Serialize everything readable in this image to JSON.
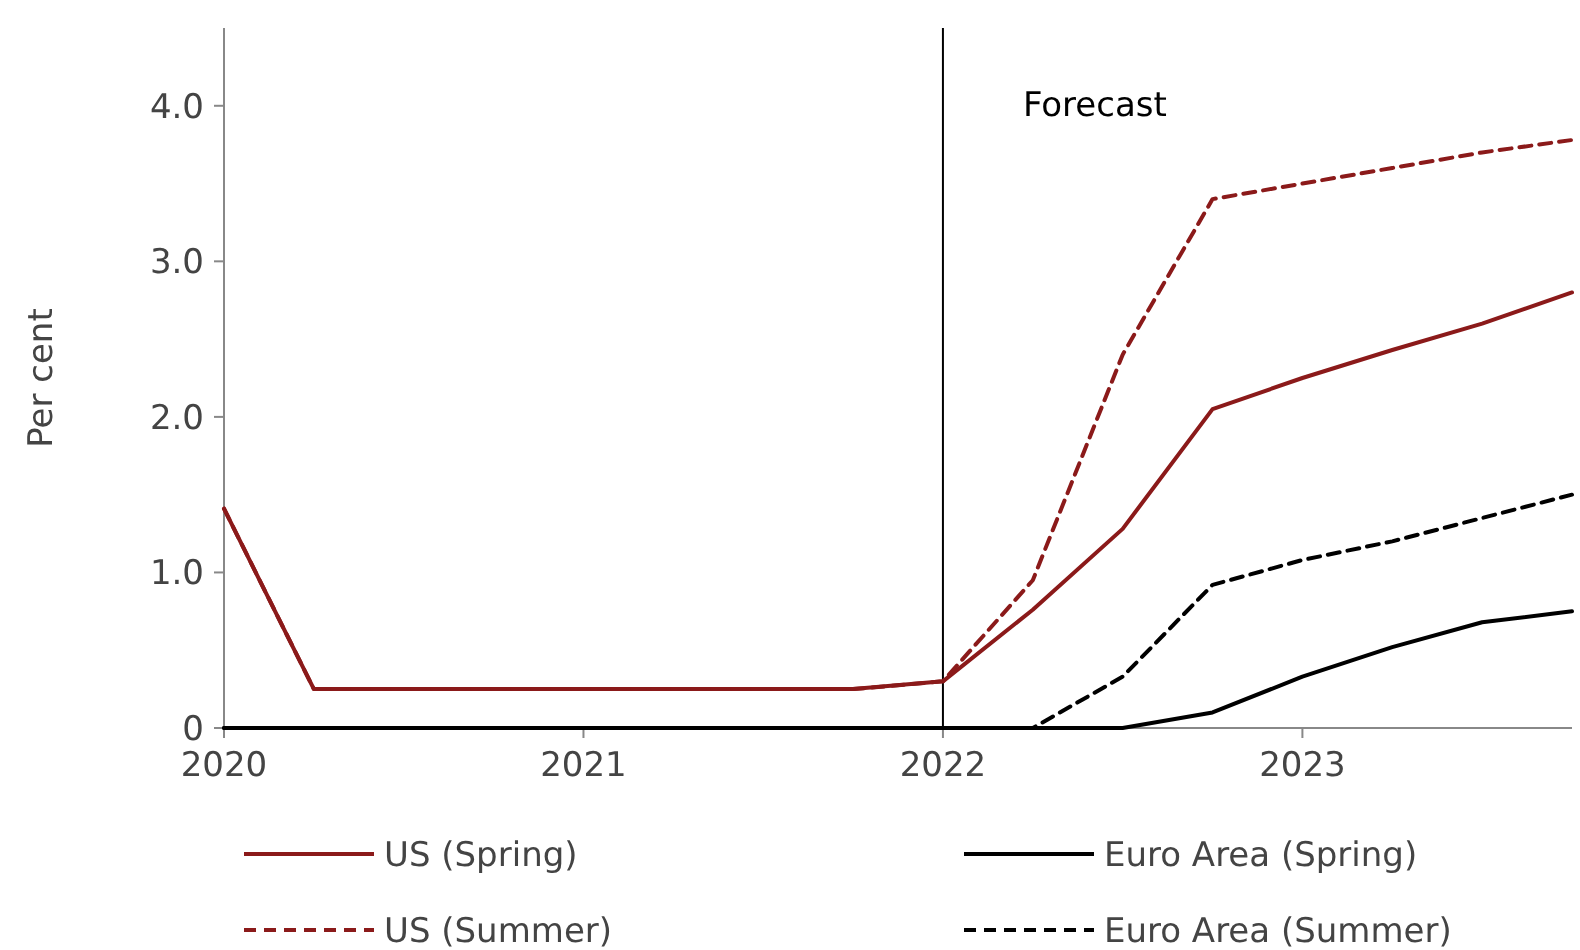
{
  "chart_data": {
    "type": "line",
    "ylabel": "Per cent",
    "x": [
      2020,
      2020.25,
      2020.5,
      2020.75,
      2021,
      2021.25,
      2021.5,
      2021.75,
      2022,
      2022.25,
      2022.5,
      2022.75,
      2023,
      2023.25,
      2023.5,
      2023.75
    ],
    "xlim": [
      2020,
      2023.75
    ],
    "xticks": [
      2020,
      2021,
      2022,
      2023
    ],
    "ylim": [
      0,
      4.5
    ],
    "yticks": [
      0,
      {
        "value": 1,
        "label": "1.0"
      },
      {
        "value": 2,
        "label": "2.0"
      },
      {
        "value": 3,
        "label": "3.0"
      },
      {
        "value": 4,
        "label": "4.0"
      }
    ],
    "grid": false,
    "legend": "bottom",
    "marker": "none",
    "ref_lines": [
      {
        "axis": "x",
        "value": 2022,
        "label": "Forecast",
        "color": "#000000"
      }
    ],
    "series": [
      {
        "name": "US (Spring)",
        "color": "#8b1a1a",
        "line_style": "solid",
        "values": [
          1.41,
          0.25,
          0.25,
          0.25,
          0.25,
          0.25,
          0.25,
          0.25,
          0.3,
          0.76,
          1.28,
          2.05,
          2.25,
          2.43,
          2.6,
          2.8
        ]
      },
      {
        "name": "Euro Area (Spring)",
        "color": "#000000",
        "line_style": "solid",
        "values": [
          0,
          0,
          0,
          0,
          0,
          0,
          0,
          0,
          0,
          0,
          0,
          0.1,
          0.33,
          0.52,
          0.68,
          0.75
        ]
      },
      {
        "name": "US (Summer)",
        "color": "#8b1a1a",
        "line_style": "dashed",
        "values": [
          1.41,
          0.25,
          0.25,
          0.25,
          0.25,
          0.25,
          0.25,
          0.25,
          0.3,
          0.95,
          2.4,
          3.4,
          3.5,
          3.6,
          3.7,
          3.78
        ]
      },
      {
        "name": "Euro Area (Summer)",
        "color": "#000000",
        "line_style": "dashed",
        "values": [
          0,
          0,
          0,
          0,
          0,
          0,
          0,
          0,
          0,
          0,
          0.33,
          0.92,
          1.08,
          1.2,
          1.35,
          1.5
        ]
      }
    ]
  }
}
